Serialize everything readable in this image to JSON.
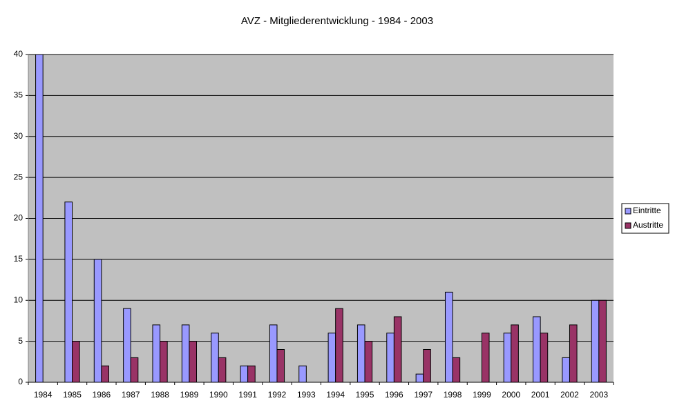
{
  "chart_data": {
    "type": "bar",
    "title": "AVZ - Mitgliederentwicklung - 1984 - 2003",
    "categories": [
      "1984",
      "1985",
      "1986",
      "1987",
      "1988",
      "1989",
      "1990",
      "1991",
      "1992",
      "1993",
      "1994",
      "1995",
      "1996",
      "1997",
      "1998",
      "1999",
      "2000",
      "2001",
      "2002",
      "2003"
    ],
    "series": [
      {
        "name": "Eintritte",
        "color": "#9999ff",
        "values": [
          40,
          22,
          15,
          9,
          7,
          7,
          6,
          2,
          7,
          2,
          6,
          7,
          6,
          1,
          11,
          0,
          6,
          8,
          3,
          10
        ]
      },
      {
        "name": "Austritte",
        "color": "#993366",
        "values": [
          0,
          5,
          2,
          3,
          5,
          5,
          3,
          2,
          4,
          0,
          9,
          5,
          8,
          4,
          3,
          6,
          7,
          6,
          7,
          10
        ]
      }
    ],
    "ylim": [
      0,
      40
    ],
    "yticks": [
      0,
      5,
      10,
      15,
      20,
      25,
      30,
      35,
      40
    ],
    "grid": true,
    "legend": "right"
  }
}
